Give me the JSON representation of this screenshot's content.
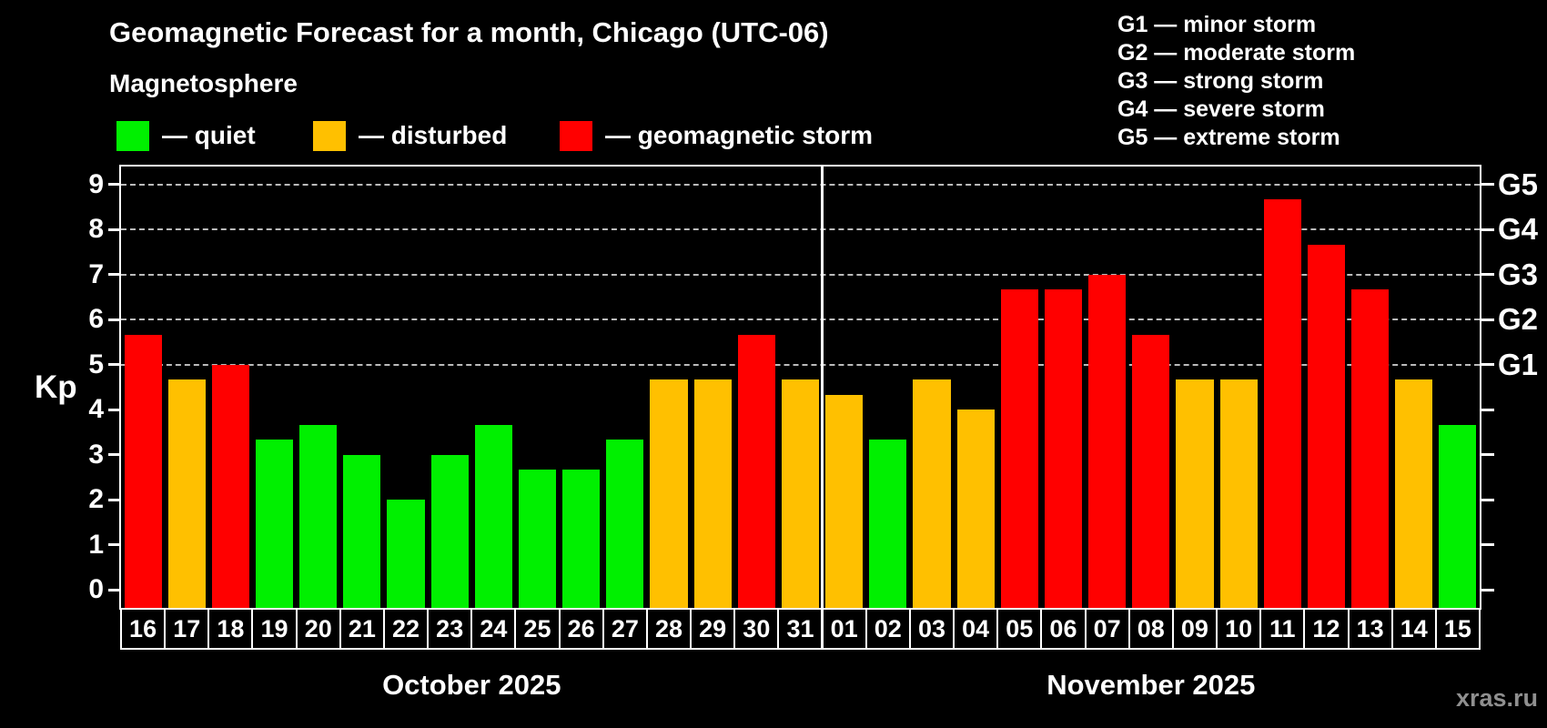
{
  "title": "Geomagnetic Forecast for a month, Chicago (UTC-06)",
  "subtitle": "Magnetosphere",
  "legend": [
    {
      "key": "quiet",
      "label": "— quiet"
    },
    {
      "key": "disturbed",
      "label": "— disturbed"
    },
    {
      "key": "storm",
      "label": "— geomagnetic storm"
    }
  ],
  "g_scale_legend": [
    "G1 — minor storm",
    "G2 — moderate storm",
    "G3 — strong storm",
    "G4 — severe storm",
    "G5 — extreme storm"
  ],
  "watermark": "xras.ru",
  "colors": {
    "quiet": "#00f000",
    "disturbed": "#ffc000",
    "storm": "#ff0000",
    "axis": "#ffffff",
    "grid": "#bbbbbb",
    "background": "#000000",
    "watermark": "#8f8f8f"
  },
  "chart_data": {
    "type": "bar",
    "ylabel": "Kp",
    "ylim": [
      -0.4,
      9.4
    ],
    "y_ticks": [
      0,
      1,
      2,
      3,
      4,
      5,
      6,
      7,
      8,
      9
    ],
    "gridlines_at": [
      5,
      6,
      7,
      8,
      9
    ],
    "right_axis": [
      {
        "kp": 5,
        "label": "G1"
      },
      {
        "kp": 6,
        "label": "G2"
      },
      {
        "kp": 7,
        "label": "G3"
      },
      {
        "kp": 8,
        "label": "G4"
      },
      {
        "kp": 9,
        "label": "G5"
      }
    ],
    "months": [
      {
        "label": "October 2025",
        "days": [
          {
            "day": "16",
            "kp": 5.67,
            "condition": "storm"
          },
          {
            "day": "17",
            "kp": 4.67,
            "condition": "disturbed"
          },
          {
            "day": "18",
            "kp": 5.0,
            "condition": "storm"
          },
          {
            "day": "19",
            "kp": 3.33,
            "condition": "quiet"
          },
          {
            "day": "20",
            "kp": 3.67,
            "condition": "quiet"
          },
          {
            "day": "21",
            "kp": 3.0,
            "condition": "quiet"
          },
          {
            "day": "22",
            "kp": 2.0,
            "condition": "quiet"
          },
          {
            "day": "23",
            "kp": 3.0,
            "condition": "quiet"
          },
          {
            "day": "24",
            "kp": 3.67,
            "condition": "quiet"
          },
          {
            "day": "25",
            "kp": 2.67,
            "condition": "quiet"
          },
          {
            "day": "26",
            "kp": 2.67,
            "condition": "quiet"
          },
          {
            "day": "27",
            "kp": 3.33,
            "condition": "quiet"
          },
          {
            "day": "28",
            "kp": 4.67,
            "condition": "disturbed"
          },
          {
            "day": "29",
            "kp": 4.67,
            "condition": "disturbed"
          },
          {
            "day": "30",
            "kp": 5.67,
            "condition": "storm"
          },
          {
            "day": "31",
            "kp": 4.67,
            "condition": "disturbed"
          }
        ]
      },
      {
        "label": "November 2025",
        "days": [
          {
            "day": "01",
            "kp": 4.33,
            "condition": "disturbed"
          },
          {
            "day": "02",
            "kp": 3.33,
            "condition": "quiet"
          },
          {
            "day": "03",
            "kp": 4.67,
            "condition": "disturbed"
          },
          {
            "day": "04",
            "kp": 4.0,
            "condition": "disturbed"
          },
          {
            "day": "05",
            "kp": 6.67,
            "condition": "storm"
          },
          {
            "day": "06",
            "kp": 6.67,
            "condition": "storm"
          },
          {
            "day": "07",
            "kp": 7.0,
            "condition": "storm"
          },
          {
            "day": "08",
            "kp": 5.67,
            "condition": "storm"
          },
          {
            "day": "09",
            "kp": 4.67,
            "condition": "disturbed"
          },
          {
            "day": "10",
            "kp": 4.67,
            "condition": "disturbed"
          },
          {
            "day": "11",
            "kp": 8.67,
            "condition": "storm"
          },
          {
            "day": "12",
            "kp": 7.67,
            "condition": "storm"
          },
          {
            "day": "13",
            "kp": 6.67,
            "condition": "storm"
          },
          {
            "day": "14",
            "kp": 4.67,
            "condition": "disturbed"
          },
          {
            "day": "15",
            "kp": 3.67,
            "condition": "quiet"
          }
        ]
      }
    ]
  }
}
